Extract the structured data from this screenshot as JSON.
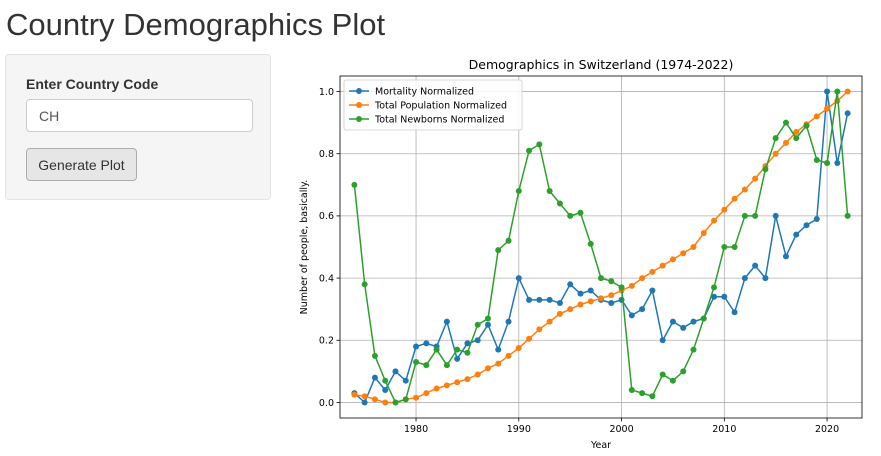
{
  "app": {
    "title": "Country Demographics Plot"
  },
  "sidebar": {
    "label": "Enter Country Code",
    "input_value": "CH",
    "button_label": "Generate Plot"
  },
  "chart_data": {
    "type": "line",
    "title": "Demographics in Switzerland (1974-2022)",
    "xlabel": "Year",
    "ylabel": "Number of people, basically.",
    "xlim": [
      1972.6,
      2023.4
    ],
    "ylim": [
      -0.05,
      1.05
    ],
    "xticks": [
      1980,
      1990,
      2000,
      2010,
      2020
    ],
    "yticks": [
      0.0,
      0.2,
      0.4,
      0.6,
      0.8,
      1.0
    ],
    "grid": true,
    "legend_position": "top-left",
    "x": [
      1974,
      1975,
      1976,
      1977,
      1978,
      1979,
      1980,
      1981,
      1982,
      1983,
      1984,
      1985,
      1986,
      1987,
      1988,
      1989,
      1990,
      1991,
      1992,
      1993,
      1994,
      1995,
      1996,
      1997,
      1998,
      1999,
      2000,
      2001,
      2002,
      2003,
      2004,
      2005,
      2006,
      2007,
      2008,
      2009,
      2010,
      2011,
      2012,
      2013,
      2014,
      2015,
      2016,
      2017,
      2018,
      2019,
      2020,
      2021,
      2022
    ],
    "series": [
      {
        "name": "Mortality Normalized",
        "color": "#1f77b4",
        "values": [
          0.03,
          0.0,
          0.08,
          0.04,
          0.1,
          0.07,
          0.18,
          0.19,
          0.18,
          0.26,
          0.14,
          0.19,
          0.2,
          0.25,
          0.17,
          0.26,
          0.4,
          0.33,
          0.33,
          0.33,
          0.32,
          0.38,
          0.35,
          0.36,
          0.33,
          0.32,
          0.33,
          0.28,
          0.3,
          0.36,
          0.2,
          0.26,
          0.24,
          0.26,
          0.27,
          0.34,
          0.34,
          0.29,
          0.4,
          0.44,
          0.4,
          0.6,
          0.47,
          0.54,
          0.57,
          0.59,
          1.0,
          0.77,
          0.93
        ]
      },
      {
        "name": "Total Population Normalized",
        "color": "#ff7f0e",
        "values": [
          0.025,
          0.02,
          0.01,
          0.0,
          0.0,
          0.01,
          0.015,
          0.03,
          0.045,
          0.055,
          0.065,
          0.075,
          0.09,
          0.11,
          0.125,
          0.15,
          0.175,
          0.205,
          0.235,
          0.26,
          0.285,
          0.3,
          0.315,
          0.325,
          0.335,
          0.345,
          0.36,
          0.375,
          0.4,
          0.42,
          0.44,
          0.46,
          0.48,
          0.5,
          0.545,
          0.585,
          0.62,
          0.655,
          0.685,
          0.72,
          0.76,
          0.8,
          0.835,
          0.87,
          0.895,
          0.92,
          0.945,
          0.97,
          1.0
        ]
      },
      {
        "name": "Total Newborns Normalized",
        "color": "#2ca02c",
        "values": [
          0.7,
          0.38,
          0.15,
          0.07,
          0.0,
          0.01,
          0.13,
          0.12,
          0.17,
          0.12,
          0.17,
          0.16,
          0.25,
          0.27,
          0.49,
          0.52,
          0.68,
          0.81,
          0.83,
          0.68,
          0.64,
          0.6,
          0.61,
          0.51,
          0.4,
          0.39,
          0.37,
          0.04,
          0.03,
          0.02,
          0.09,
          0.07,
          0.1,
          0.17,
          0.27,
          0.37,
          0.5,
          0.5,
          0.6,
          0.6,
          0.75,
          0.85,
          0.9,
          0.85,
          0.89,
          0.78,
          0.77,
          1.0,
          0.6
        ]
      }
    ]
  }
}
